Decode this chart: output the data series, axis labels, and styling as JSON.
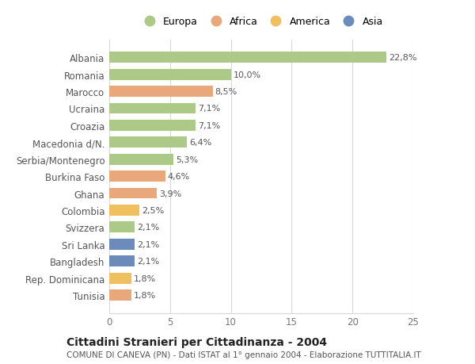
{
  "categories": [
    "Tunisia",
    "Rep. Dominicana",
    "Bangladesh",
    "Sri Lanka",
    "Svizzera",
    "Colombia",
    "Ghana",
    "Burkina Faso",
    "Serbia/Montenegro",
    "Macedonia d/N.",
    "Croazia",
    "Ucraina",
    "Marocco",
    "Romania",
    "Albania"
  ],
  "values": [
    1.8,
    1.8,
    2.1,
    2.1,
    2.1,
    2.5,
    3.9,
    4.6,
    5.3,
    6.4,
    7.1,
    7.1,
    8.5,
    10.0,
    22.8
  ],
  "labels": [
    "1,8%",
    "1,8%",
    "2,1%",
    "2,1%",
    "2,1%",
    "2,5%",
    "3,9%",
    "4,6%",
    "5,3%",
    "6,4%",
    "7,1%",
    "7,1%",
    "8,5%",
    "10,0%",
    "22,8%"
  ],
  "continents": [
    "Africa",
    "America",
    "Asia",
    "Asia",
    "Europa",
    "America",
    "Africa",
    "Africa",
    "Europa",
    "Europa",
    "Europa",
    "Europa",
    "Africa",
    "Europa",
    "Europa"
  ],
  "continent_colors": {
    "Europa": "#adc988",
    "Africa": "#e8a87c",
    "America": "#f0c060",
    "Asia": "#6b8cba"
  },
  "legend_order": [
    "Europa",
    "Africa",
    "America",
    "Asia"
  ],
  "xlim": [
    0,
    25
  ],
  "xticks": [
    0,
    5,
    10,
    15,
    20,
    25
  ],
  "title": "Cittadini Stranieri per Cittadinanza - 2004",
  "subtitle": "COMUNE DI CANEVA (PN) - Dati ISTAT al 1° gennaio 2004 - Elaborazione TUTTITALIA.IT",
  "background_color": "#ffffff",
  "grid_color": "#d8d8d8",
  "bar_height": 0.65,
  "label_fontsize": 8.0,
  "tick_fontsize": 8.5,
  "title_fontsize": 10.0,
  "subtitle_fontsize": 7.5,
  "legend_fontsize": 9.0
}
